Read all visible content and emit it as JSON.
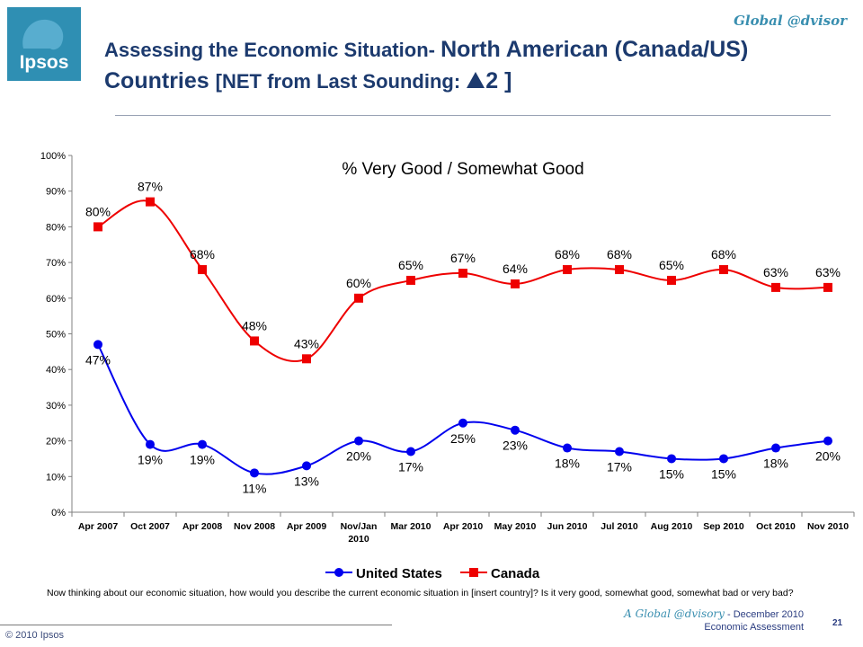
{
  "header": {
    "logo_text": "Ipsos",
    "brand": "Global @dvisor",
    "title_part1": "Assessing the Economic Situation- ",
    "title_part2": "North American (Canada/US) Countries ",
    "title_net": "[NET from Last Sounding: ",
    "title_net_icon": "up-triangle-icon",
    "title_net_value": "2 ]"
  },
  "chart_data": {
    "type": "line",
    "title": "% Very Good / Somewhat Good",
    "categories": [
      "Apr 2007",
      "Oct 2007",
      "Apr 2008",
      "Nov 2008",
      "Apr 2009",
      "Nov/Jan 2010",
      "Mar 2010",
      "Apr 2010",
      "May 2010",
      "Jun 2010",
      "Jul 2010",
      "Aug 2010",
      "Sep 2010",
      "Oct 2010",
      "Nov 2010"
    ],
    "yticks": [
      "0%",
      "10%",
      "20%",
      "30%",
      "40%",
      "50%",
      "60%",
      "70%",
      "80%",
      "90%",
      "100%"
    ],
    "ylim": [
      0,
      100
    ],
    "series": [
      {
        "name": "United States",
        "color": "#0000ee",
        "marker": "circle",
        "values": [
          47,
          19,
          19,
          11,
          13,
          20,
          17,
          25,
          23,
          18,
          17,
          15,
          15,
          18,
          20
        ]
      },
      {
        "name": "Canada",
        "color": "#ee0000",
        "marker": "square",
        "values": [
          80,
          87,
          68,
          48,
          43,
          60,
          65,
          67,
          64,
          68,
          68,
          65,
          68,
          63,
          63
        ]
      }
    ],
    "legend": "bottom"
  },
  "question": "Now thinking about our economic situation, how would you describe the current economic situation in [insert country]? Is it very good, somewhat good, somewhat bad or very bad?",
  "footer": {
    "copyright": "© 2010 Ipsos",
    "source_brand": "A Global @dvisory",
    "source_rest": " - December 2010",
    "source_line2": "Economic Assessment",
    "page": "21"
  }
}
